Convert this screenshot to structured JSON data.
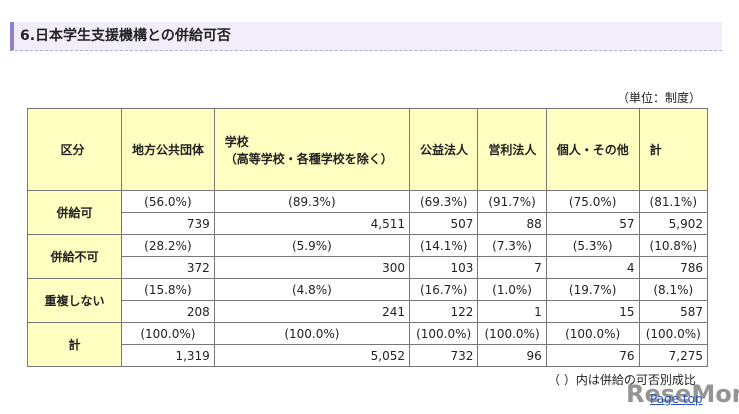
{
  "heading": "6.日本学生支援機構との併給可否",
  "unit": "（単位：制度）",
  "table": {
    "header": [
      "区分",
      "地方公共団体",
      "学校\n（高等学校・各種学校を除く）",
      "公益法人",
      "営利法人",
      "個人・その他",
      "計"
    ],
    "groups": [
      {
        "label": "併給可",
        "ratios": [
          "(56.0%)",
          "(89.3%)",
          "(69.3%)",
          "(91.7%)",
          "(75.0%)",
          "(81.1%)"
        ],
        "counts": [
          "739",
          "4,511",
          "507",
          "88",
          "57",
          "5,902"
        ]
      },
      {
        "label": "併給不可",
        "ratios": [
          "(28.2%)",
          "(5.9%)",
          "(14.1%)",
          "(7.3%)",
          "(5.3%)",
          "(10.8%)"
        ],
        "counts": [
          "372",
          "300",
          "103",
          "7",
          "4",
          "786"
        ]
      },
      {
        "label": "重複しない",
        "ratios": [
          "(15.8%)",
          "(4.8%)",
          "(16.7%)",
          "(1.0%)",
          "(19.7%)",
          "(8.1%)"
        ],
        "counts": [
          "208",
          "241",
          "122",
          "1",
          "15",
          "587"
        ]
      },
      {
        "label": "計",
        "ratios": [
          "(100.0%)",
          "(100.0%)",
          "(100.0%)",
          "(100.0%)",
          "(100.0%)",
          "(100.0%)"
        ],
        "counts": [
          "1,319",
          "5,052",
          "732",
          "96",
          "76",
          "7,275"
        ]
      }
    ]
  },
  "note": "（ ）内は併給の可否別成比",
  "page_top": "Page top",
  "watermark": "ReseMom"
}
